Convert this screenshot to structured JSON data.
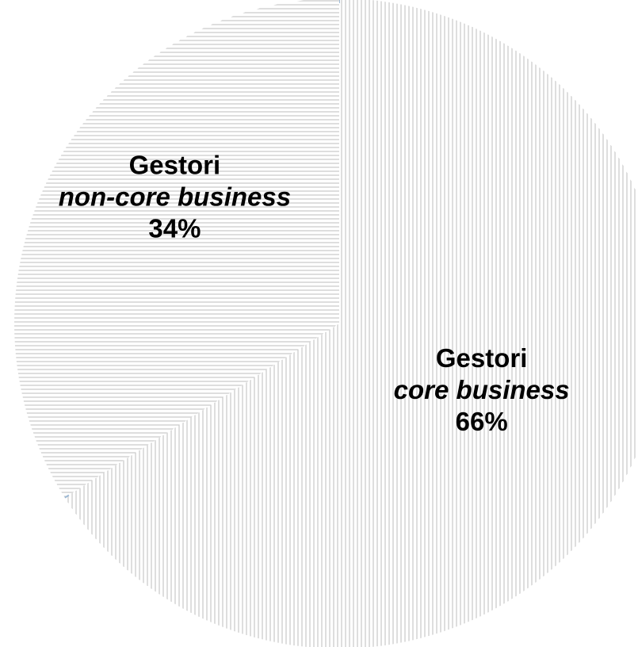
{
  "chart_data": {
    "type": "pie",
    "start_angle_deg": 0,
    "direction": "clockwise",
    "slices": [
      {
        "label_line1": "Gestori",
        "label_line2": "core business",
        "value": 66,
        "value_label": "66%",
        "pattern": "vertical-lines",
        "line_color": "#bdbdbd"
      },
      {
        "label_line1": "Gestori",
        "label_line2": "non-core business",
        "value": 34,
        "value_label": "34%",
        "pattern": "horizontal-lines",
        "line_color": "#bdbdbd"
      }
    ],
    "edge_color": "#9dbad6",
    "legend": "none"
  }
}
